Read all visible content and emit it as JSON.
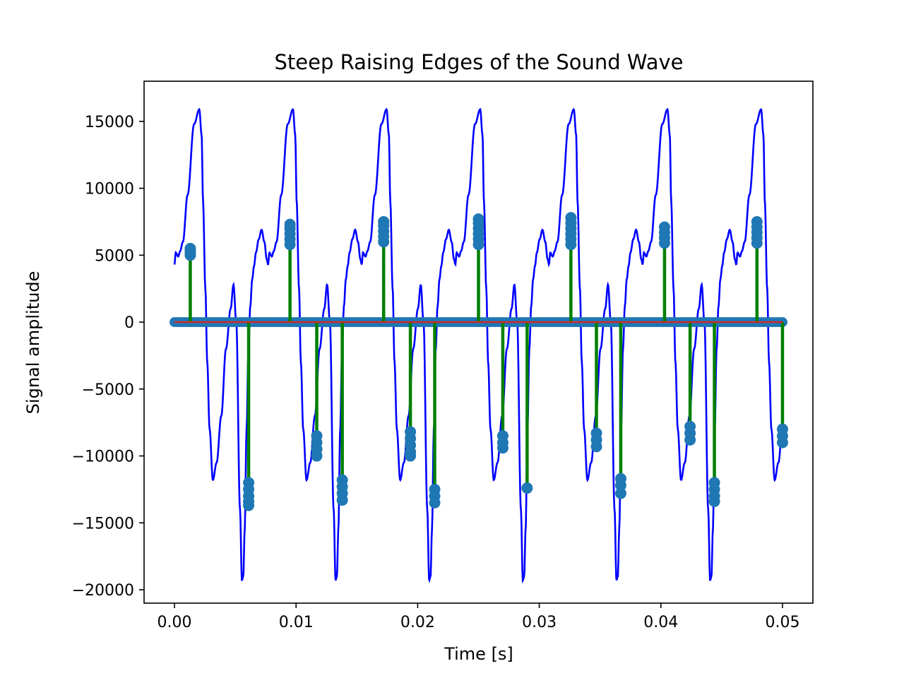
{
  "chart_data": {
    "type": "line",
    "title": "Steep Raising Edges of the Sound Wave",
    "xlabel": "Time [s]",
    "ylabel": "Signal amplitude",
    "xlim": [
      -0.0025,
      0.0525
    ],
    "ylim": [
      -21000,
      18000
    ],
    "xticks": [
      0.0,
      0.01,
      0.02,
      0.03,
      0.04,
      0.05
    ],
    "xtick_labels": [
      "0.00",
      "0.01",
      "0.02",
      "0.03",
      "0.04",
      "0.05"
    ],
    "yticks": [
      -20000,
      -15000,
      -10000,
      -5000,
      0,
      5000,
      10000,
      15000
    ],
    "ytick_labels": [
      "−20000",
      "−15000",
      "−10000",
      "−5000",
      "0",
      "5000",
      "10000",
      "15000"
    ],
    "grid": false,
    "period_s": 0.0077,
    "signal_shape": {
      "description_points_t_in_period": [
        0.0,
        0.013,
        0.04,
        0.06,
        0.09,
        0.14,
        0.21,
        0.265,
        0.29,
        0.305,
        0.33,
        0.35,
        0.375,
        0.41,
        0.45,
        0.5,
        0.55,
        0.6,
        0.63,
        0.66,
        0.7,
        0.72,
        0.735,
        0.75,
        0.77,
        0.79,
        0.81,
        0.83,
        0.85,
        0.87,
        0.9,
        0.93,
        0.96,
        0.985,
        1.0
      ],
      "values": [
        4300,
        5200,
        4900,
        5300,
        6000,
        9500,
        14800,
        15900,
        14000,
        9000,
        2500,
        -3000,
        -8000,
        -11800,
        -10500,
        -7000,
        -2000,
        1000,
        2800,
        0,
        -14000,
        -19300,
        -19000,
        -15500,
        -8000,
        -2000,
        1200,
        3200,
        4200,
        5200,
        6200,
        6900,
        6000,
        4700,
        4300
      ]
    },
    "series": [
      {
        "name": "",
        "kind": "signal",
        "color": "#0000ff"
      },
      {
        "name": "",
        "kind": "stems",
        "color": "#008000"
      },
      {
        "name": "",
        "kind": "markers",
        "color": "#1f77b4"
      },
      {
        "name": "",
        "kind": "baseline",
        "color": "#d62728"
      }
    ],
    "stem_clusters": [
      {
        "x": 0.0013,
        "values": [
          5000,
          5200,
          5400,
          5500
        ]
      },
      {
        "x": 0.0061,
        "values": [
          -12000,
          -12500,
          -13000,
          -13400,
          -13700
        ]
      },
      {
        "x": 0.0095,
        "values": [
          5800,
          6200,
          6600,
          7000,
          7300
        ]
      },
      {
        "x": 0.0117,
        "values": [
          -8500,
          -9000,
          -9500,
          -10000
        ]
      },
      {
        "x": 0.0138,
        "values": [
          -11800,
          -12300,
          -12800,
          -13300
        ]
      },
      {
        "x": 0.0172,
        "values": [
          6000,
          6400,
          6800,
          7200,
          7500
        ]
      },
      {
        "x": 0.0194,
        "values": [
          -8200,
          -8700,
          -9200,
          -9700,
          -10000
        ]
      },
      {
        "x": 0.0214,
        "values": [
          -12500,
          -13000,
          -13500
        ]
      },
      {
        "x": 0.025,
        "values": [
          5800,
          6200,
          6600,
          7000,
          7400,
          7700
        ]
      },
      {
        "x": 0.027,
        "values": [
          -8500,
          -9000,
          -9400
        ]
      },
      {
        "x": 0.029,
        "values": [
          -12400
        ]
      },
      {
        "x": 0.0326,
        "values": [
          5800,
          6200,
          6600,
          7000,
          7400,
          7800
        ]
      },
      {
        "x": 0.0347,
        "values": [
          -8300,
          -8800,
          -9300
        ]
      },
      {
        "x": 0.0367,
        "values": [
          -11700,
          -12200,
          -12800
        ]
      },
      {
        "x": 0.0403,
        "values": [
          5900,
          6300,
          6700,
          7100
        ]
      },
      {
        "x": 0.0424,
        "values": [
          -7800,
          -8300,
          -8800
        ]
      },
      {
        "x": 0.0444,
        "values": [
          -12000,
          -12500,
          -13000,
          -13400
        ]
      },
      {
        "x": 0.0479,
        "values": [
          5900,
          6300,
          6700,
          7100,
          7500
        ]
      },
      {
        "x": 0.05,
        "values": [
          -8000,
          -8500,
          -9000
        ]
      }
    ]
  }
}
